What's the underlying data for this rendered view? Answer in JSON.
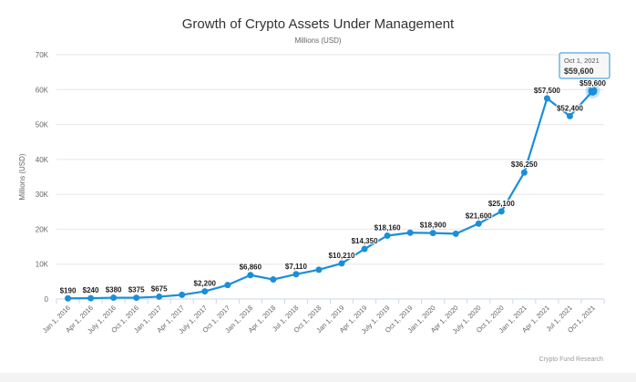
{
  "chart_data": {
    "type": "line",
    "title": "Growth of Crypto Assets Under Management",
    "subtitle": "Millions (USD)",
    "xlabel": "",
    "ylabel": "Millions (USD)",
    "ylim": [
      0,
      70000
    ],
    "yticks": [
      0,
      10000,
      20000,
      30000,
      40000,
      50000,
      60000,
      70000
    ],
    "ytick_labels": [
      "0",
      "10K",
      "20K",
      "30K",
      "40K",
      "50K",
      "60K",
      "70K"
    ],
    "grid": true,
    "color": "#1a8fd8",
    "categories": [
      "Jan 1, 2016",
      "Apr 1, 2016",
      "July 1, 2016",
      "Oct 1, 2016",
      "Jan 1, 2017",
      "Apr 1, 2017",
      "July 1, 2017",
      "Oct 1, 2017",
      "Jan 1, 2018",
      "Apr 1, 2018",
      "Jul 1, 2018",
      "Oct 1, 2018",
      "Jan 1, 2019",
      "Apr 1, 2019",
      "July 1, 2019",
      "Oct 1, 2019",
      "Jan 1, 2020",
      "Apr 1, 2020",
      "July 1, 2020",
      "Oct 1, 2020",
      "Jan 1, 2021",
      "Apr 1, 2021",
      "Jul 1, 2021",
      "Oct 1, 2021"
    ],
    "values": [
      190,
      240,
      380,
      375,
      675,
      1200,
      2200,
      4000,
      6860,
      5600,
      7110,
      8400,
      10210,
      14350,
      18160,
      19000,
      18900,
      18700,
      21600,
      25100,
      36250,
      57500,
      52400,
      59600
    ],
    "data_labels": [
      "$190",
      "$240",
      "$380",
      "$375",
      "$675",
      null,
      "$2,200",
      null,
      "$6,860",
      null,
      "$7,110",
      null,
      "$10,210",
      "$14,350",
      "$18,160",
      null,
      "$18,900",
      null,
      "$21,600",
      "$25,100",
      "$36,250",
      "$57,500",
      "$52,400",
      "$59,600"
    ],
    "tooltip": {
      "date": "Oct 1, 2021",
      "value": "$59,600"
    },
    "credit": "Crypto Fund Research"
  }
}
